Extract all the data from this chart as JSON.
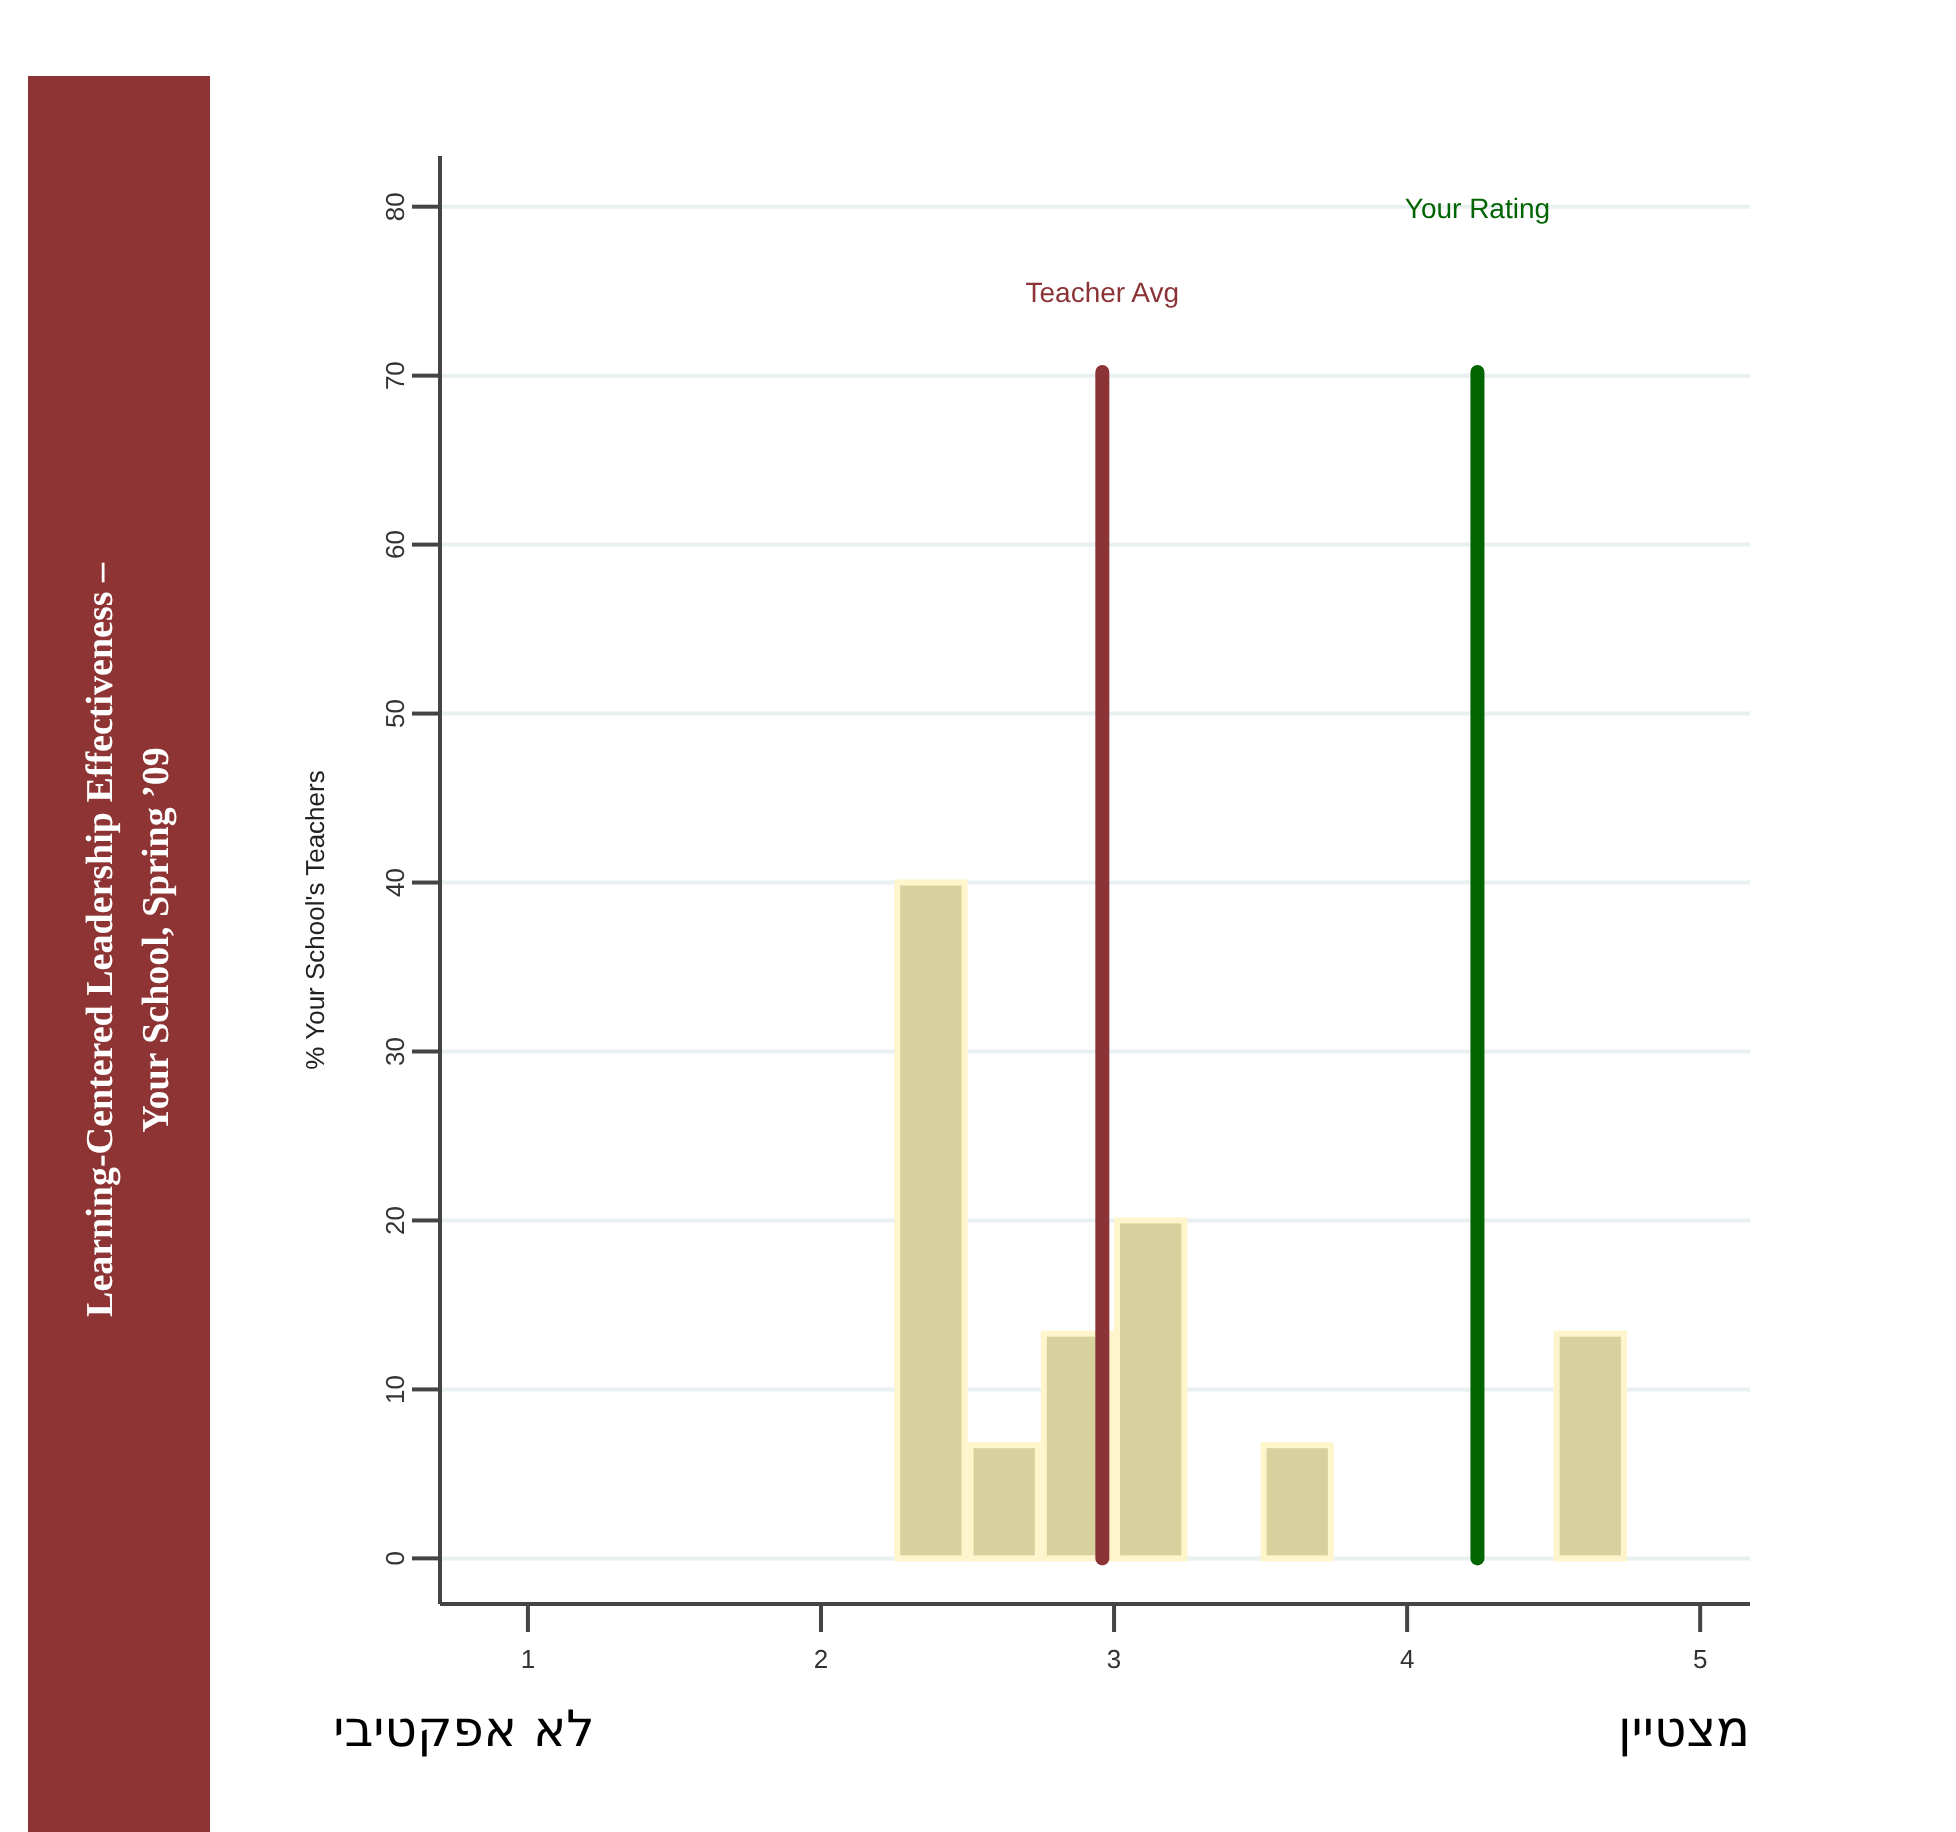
{
  "chart_data": {
    "type": "histogram",
    "title": "Learning-Centered Leadership Effectiveness –",
    "subtitle": "Your School, Spring ’09",
    "ylabel": "% Your School's Teachers",
    "bins": [
      2.25,
      2.5,
      2.75,
      3.0,
      3.25,
      3.5,
      3.75,
      4.0,
      4.25,
      4.5,
      4.75
    ],
    "values": [
      40,
      6.7,
      13.3,
      20,
      0,
      6.7,
      0,
      0,
      0,
      13.3
    ],
    "color": "#d6d19d",
    "ref_lines": [
      {
        "axis": "x",
        "value": 2.96,
        "label": "Teacher Avg",
        "color": "#8b3336"
      },
      {
        "axis": "x",
        "value": 4.24,
        "label": "Your Rating",
        "color": "#006400"
      }
    ],
    "xlim": [
      0.7,
      5.17
    ],
    "ylim": [
      -2.7,
      83
    ],
    "xticks": [
      1,
      2,
      3,
      4,
      5
    ],
    "yticks": [
      0,
      10,
      20,
      30,
      40,
      50,
      60,
      70,
      80
    ],
    "grid": "y",
    "annotations": [
      "לא אפקטיבי",
      "מצטיין"
    ]
  }
}
